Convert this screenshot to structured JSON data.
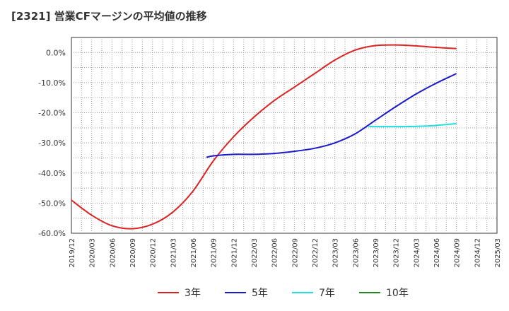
{
  "title": "[2321]  営業CFマージンの平均値の推移",
  "chart_data": {
    "type": "line",
    "title": "[2321]  営業CFマージンの平均値の推移",
    "xlabel": "",
    "ylabel": "",
    "ylim": [
      -60,
      5
    ],
    "y_ticks": [
      0,
      -10,
      -20,
      -30,
      -40,
      -50,
      -60
    ],
    "y_tick_labels": [
      "0.0%",
      "-10.0%",
      "-20.0%",
      "-30.0%",
      "-40.0%",
      "-50.0%",
      "-60.0%"
    ],
    "x_tick_labels": [
      "2019/12",
      "2020/03",
      "2020/06",
      "2020/09",
      "2020/12",
      "2021/03",
      "2021/06",
      "2021/09",
      "2021/12",
      "2022/03",
      "2022/06",
      "2022/09",
      "2022/12",
      "2023/03",
      "2023/06",
      "2023/09",
      "2023/12",
      "2024/03",
      "2024/06",
      "2024/09",
      "2024/12",
      "2025/03"
    ],
    "grid": true,
    "legend_position": "bottom",
    "series": [
      {
        "name": "3年",
        "color": "#dd2222",
        "x": [
          "2019/12",
          "2020/03",
          "2020/06",
          "2020/09",
          "2020/12",
          "2021/03",
          "2021/06",
          "2021/09",
          "2021/12",
          "2022/03",
          "2022/06",
          "2022/09",
          "2022/12",
          "2023/03",
          "2023/06",
          "2023/09",
          "2023/12",
          "2024/03",
          "2024/06",
          "2024/09"
        ],
        "values": [
          -49,
          -54,
          -57.5,
          -58.5,
          -57,
          -53,
          -46,
          -36,
          -28,
          -21.5,
          -16,
          -11.5,
          -7,
          -2.5,
          0.8,
          2.3,
          2.5,
          2.2,
          1.7,
          1.3
        ]
      },
      {
        "name": "5年",
        "color": "#1a1acc",
        "x": [
          "2021/08",
          "2021/09",
          "2021/12",
          "2022/03",
          "2022/06",
          "2022/09",
          "2022/12",
          "2023/03",
          "2023/06",
          "2023/09",
          "2023/12",
          "2024/03",
          "2024/06",
          "2024/09"
        ],
        "values": [
          -34.8,
          -34.3,
          -33.8,
          -33.8,
          -33.5,
          -32.8,
          -31.8,
          -30,
          -27,
          -22.5,
          -18,
          -13.8,
          -10.2,
          -7
        ]
      },
      {
        "name": "7年",
        "color": "#22dddd",
        "x": [
          "2023/08",
          "2023/09",
          "2023/12",
          "2024/03",
          "2024/06",
          "2024/09"
        ],
        "values": [
          -24.5,
          -24.6,
          -24.6,
          -24.5,
          -24.2,
          -23.6
        ]
      },
      {
        "name": "10年",
        "color": "#228822",
        "x": [],
        "values": []
      }
    ]
  }
}
